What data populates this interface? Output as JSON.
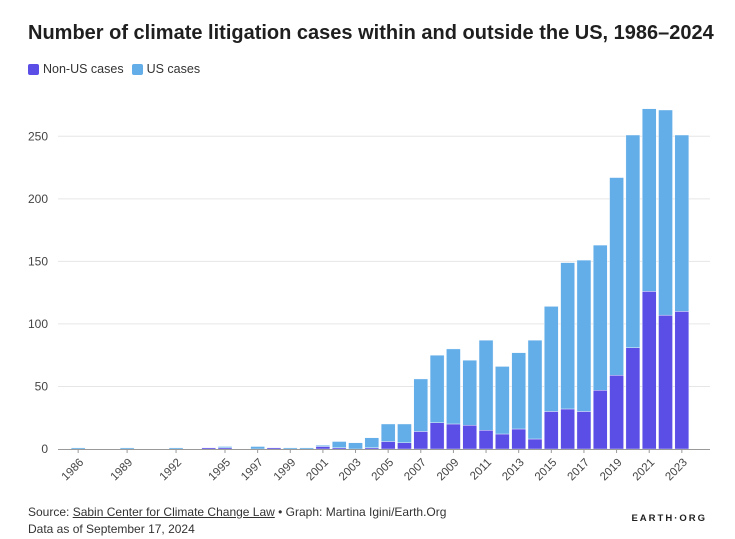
{
  "title": "Number of climate litigation cases within and outside the US, 1986–2024",
  "footer": {
    "source_label": "Source: ",
    "source_link": "Sabin Center for Climate Change Law",
    "graph_credit": " • Graph: Martina Igini/Earth.Org",
    "date_note": "Data as of September 17, 2024"
  },
  "brand": "EARTH·ORG",
  "colors": {
    "non_us": "#5b4ee6",
    "us": "#63ade8",
    "grid": "#e6e6e6",
    "axis": "#999999"
  },
  "chart_data": {
    "type": "bar",
    "stacked": true,
    "title": "Number of climate litigation cases within and outside the US, 1986–2024",
    "xlabel": "",
    "ylabel": "",
    "ylim": [
      0,
      275
    ],
    "yticks": [
      0,
      50,
      100,
      150,
      200,
      250
    ],
    "grid": true,
    "legend_position": "top-left",
    "categories": [
      "1986",
      "1987",
      "1988",
      "1989",
      "1990",
      "1991",
      "1992",
      "1993",
      "1994",
      "1995",
      "1996",
      "1997",
      "1998",
      "1999",
      "2000",
      "2001",
      "2002",
      "2003",
      "2004",
      "2005",
      "2006",
      "2007",
      "2008",
      "2009",
      "2010",
      "2011",
      "2012",
      "2013",
      "2014",
      "2015",
      "2016",
      "2017",
      "2018",
      "2019",
      "2020",
      "2021",
      "2022",
      "2023"
    ],
    "xtick_labels": [
      "1986",
      "1989",
      "1992",
      "1995",
      "1997",
      "1999",
      "2001",
      "2003",
      "2005",
      "2007",
      "2009",
      "2011",
      "2013",
      "2015",
      "2017",
      "2019",
      "2021",
      "2023"
    ],
    "series": [
      {
        "name": "Non-US cases",
        "color": "#5b4ee6",
        "values": [
          0,
          0,
          0,
          0,
          0,
          0,
          0,
          0,
          1,
          1,
          0,
          0,
          1,
          0,
          0,
          2,
          1,
          0,
          1,
          6,
          5,
          14,
          21,
          20,
          19,
          15,
          12,
          16,
          8,
          30,
          32,
          30,
          47,
          59,
          81,
          126,
          107,
          110
        ]
      },
      {
        "name": "US cases",
        "color": "#63ade8",
        "values": [
          1,
          0,
          0,
          1,
          0,
          0,
          1,
          0,
          0,
          1,
          0,
          2,
          0,
          1,
          1,
          1,
          5,
          5,
          8,
          14,
          15,
          42,
          54,
          60,
          52,
          72,
          54,
          61,
          79,
          84,
          117,
          121,
          116,
          158,
          170,
          146,
          164,
          141
        ]
      }
    ]
  }
}
